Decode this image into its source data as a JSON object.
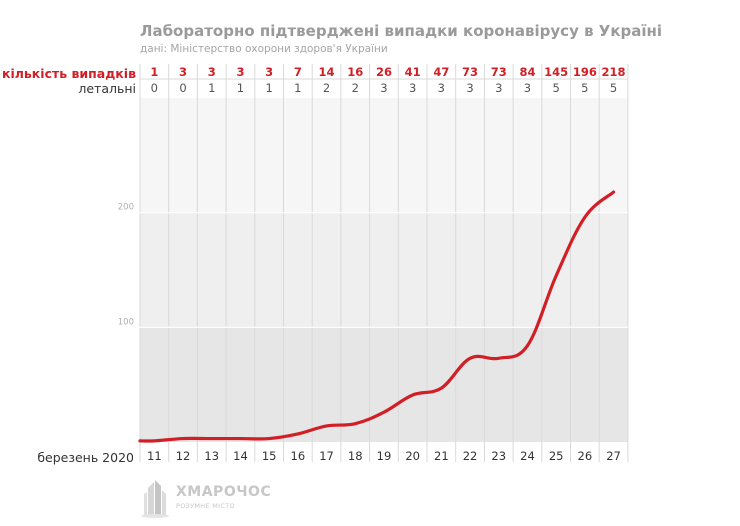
{
  "header": {
    "title": "Лабораторно підтверджені випадки коронавірусу в Україні",
    "subtitle": "дані: Міністерство охорони здоров'я України"
  },
  "rows": {
    "cases_label": "кількість випадків",
    "deaths_label": "летальні"
  },
  "colors": {
    "accent": "#d21f26",
    "muted": "#9a9a9a",
    "grid": "#ececec",
    "band": "#e6e6e6"
  },
  "chart_data": {
    "type": "line",
    "title": "Лабораторно підтверджені випадки коронавірусу в Україні",
    "xlabel": "березень 2020",
    "ylabel": "",
    "categories": [
      "11",
      "12",
      "13",
      "14",
      "15",
      "16",
      "17",
      "18",
      "19",
      "20",
      "21",
      "22",
      "23",
      "24",
      "25",
      "26",
      "27"
    ],
    "series": [
      {
        "name": "кількість випадків",
        "values": [
          1,
          3,
          3,
          3,
          3,
          7,
          14,
          16,
          26,
          41,
          47,
          73,
          73,
          84,
          145,
          196,
          218
        ]
      },
      {
        "name": "летальні",
        "values": [
          0,
          0,
          1,
          1,
          1,
          1,
          2,
          2,
          3,
          3,
          3,
          3,
          3,
          3,
          5,
          5,
          5
        ]
      }
    ],
    "yticks": [
      100,
      200
    ],
    "ylim": [
      0,
      300
    ],
    "grid": true,
    "legend": "none"
  },
  "logo": {
    "icon": "building-logo-icon",
    "name": "ХМАРОЧОС",
    "tagline": "РОЗУМНЕ МІСТО"
  }
}
